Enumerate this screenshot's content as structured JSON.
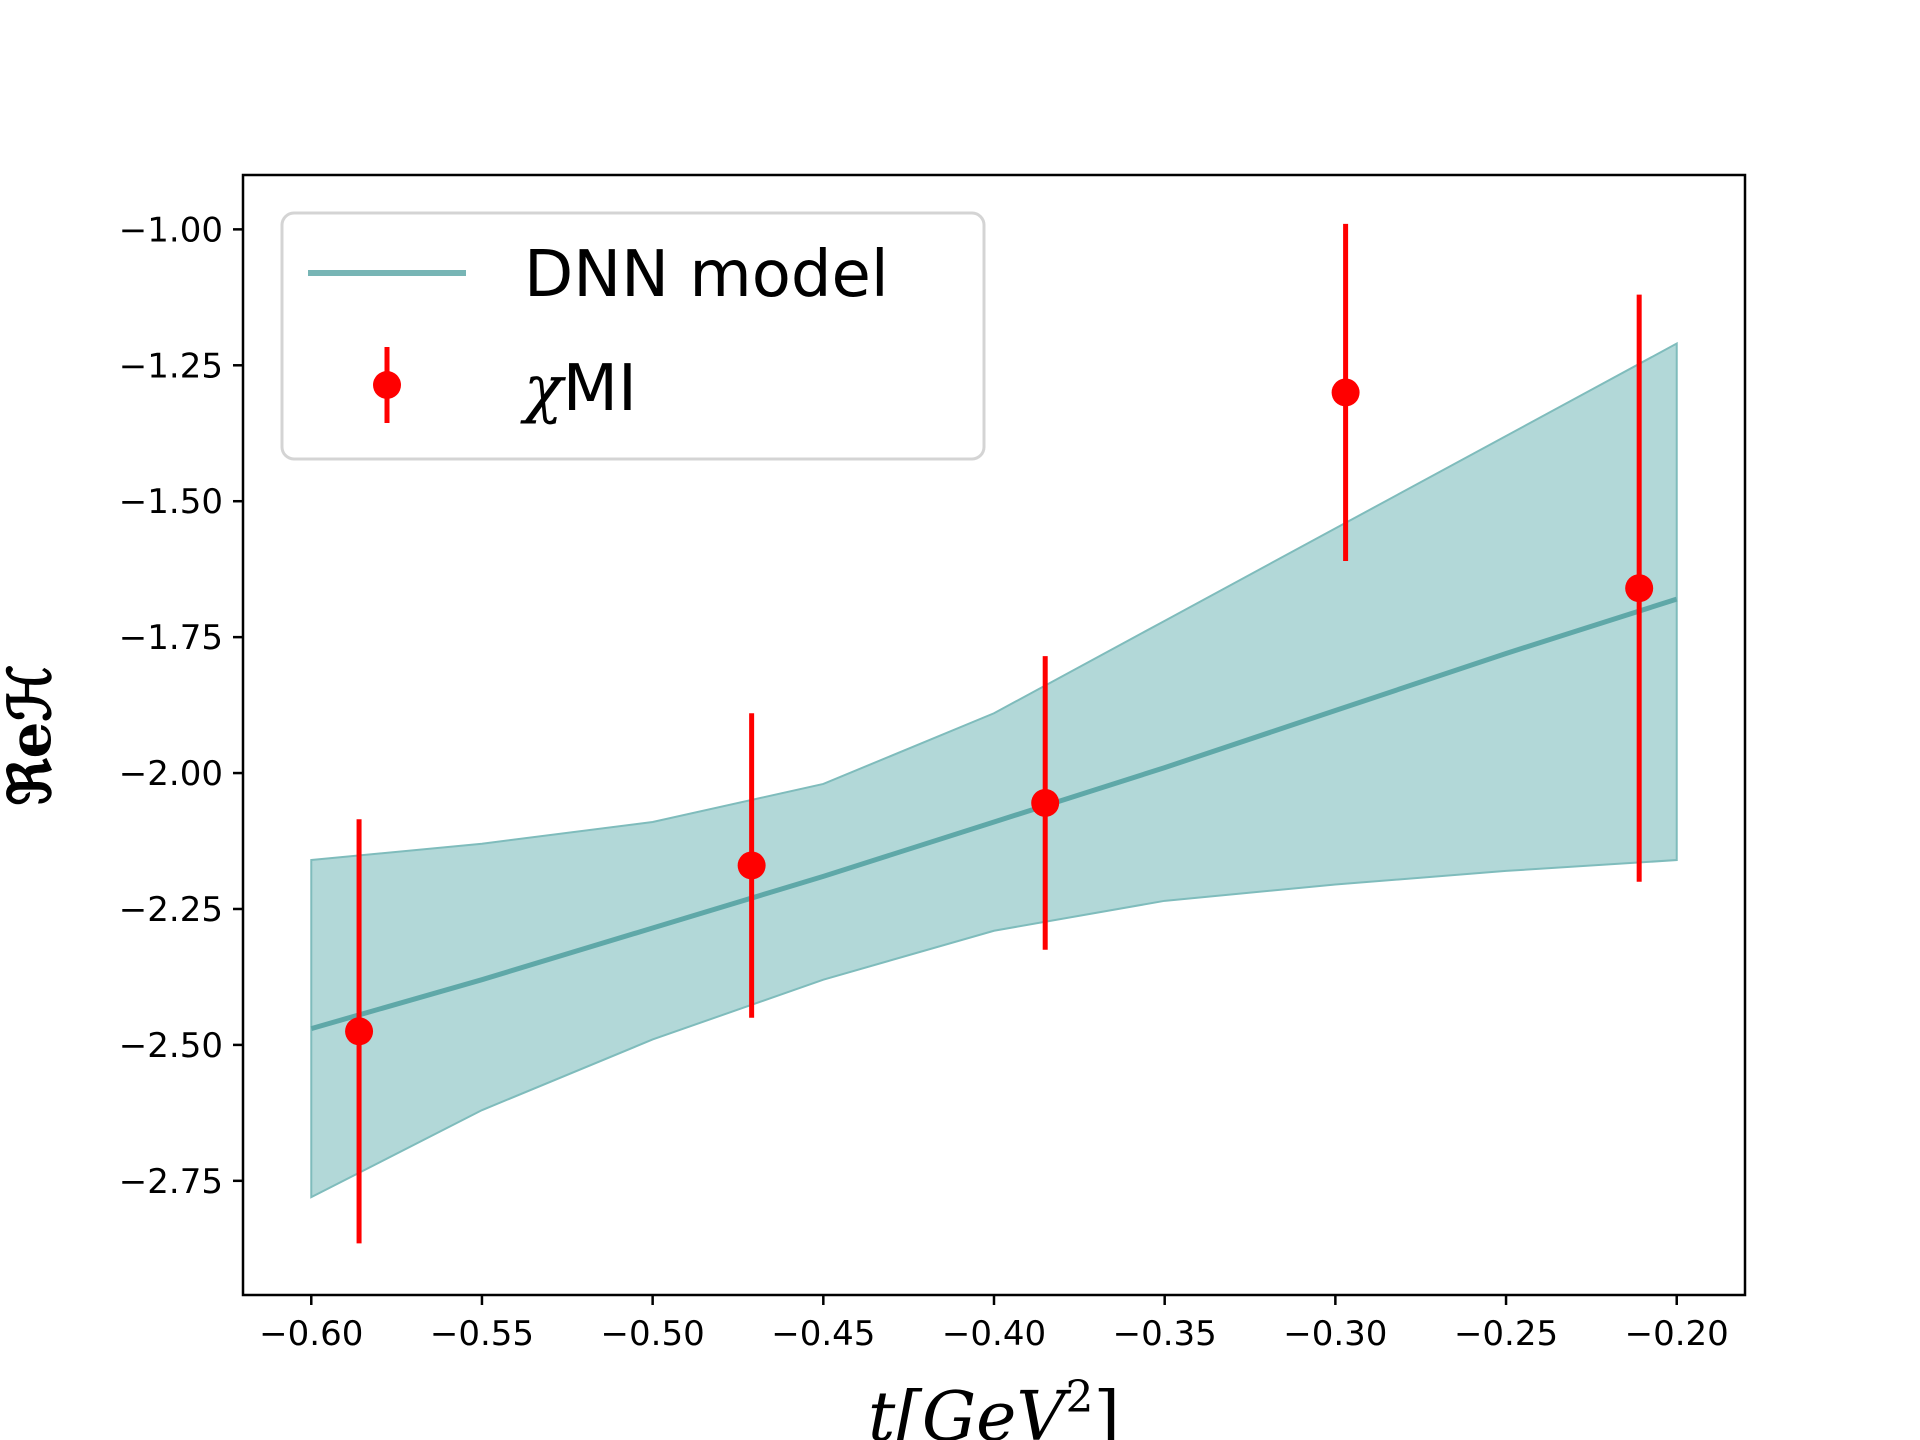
{
  "chart_data": {
    "type": "line",
    "title": "",
    "xlabel": "t[GeV^2]",
    "ylabel": "ℜeℋ",
    "xlim": [
      -0.62,
      -0.18
    ],
    "ylim": [
      -2.96,
      -0.9
    ],
    "grid": false,
    "legend_position": "top-left",
    "xticks": [
      -0.6,
      -0.55,
      -0.5,
      -0.45,
      -0.4,
      -0.35,
      -0.3,
      -0.25,
      -0.2
    ],
    "xtick_labels": [
      "−0.60",
      "−0.55",
      "−0.50",
      "−0.45",
      "−0.40",
      "−0.35",
      "−0.30",
      "−0.25",
      "−0.20"
    ],
    "yticks": [
      -1.0,
      -1.25,
      -1.5,
      -1.75,
      -2.0,
      -2.25,
      -2.5,
      -2.75
    ],
    "ytick_labels": [
      "−1.00",
      "−1.25",
      "−1.50",
      "−1.75",
      "−2.00",
      "−2.25",
      "−2.50",
      "−2.75"
    ],
    "series": [
      {
        "name": "DNN model",
        "kind": "line_with_band",
        "color": "#5fa8a8",
        "band_color": "#b2d8d8",
        "x": [
          -0.6,
          -0.55,
          -0.5,
          -0.45,
          -0.4,
          -0.35,
          -0.3,
          -0.25,
          -0.2
        ],
        "y": [
          -2.47,
          -2.38,
          -2.285,
          -2.19,
          -2.09,
          -1.99,
          -1.885,
          -1.78,
          -1.68
        ],
        "band_upper": [
          -2.16,
          -2.13,
          -2.09,
          -2.02,
          -1.89,
          -1.72,
          -1.55,
          -1.38,
          -1.21
        ],
        "band_lower": [
          -2.78,
          -2.62,
          -2.49,
          -2.38,
          -2.29,
          -2.235,
          -2.205,
          -2.18,
          -2.16
        ]
      },
      {
        "name": "χMI",
        "kind": "errorbar",
        "color": "#ff0000",
        "x": [
          -0.586,
          -0.471,
          -0.385,
          -0.297,
          -0.211
        ],
        "y": [
          -2.475,
          -2.17,
          -2.055,
          -1.3,
          -1.66
        ],
        "yerr": [
          0.39,
          0.28,
          0.27,
          0.31,
          0.54
        ]
      }
    ]
  },
  "legend": {
    "line_label": "DNN model",
    "errorbar_label_greek": "χ",
    "errorbar_label_rest": "MI"
  },
  "axes_text": {
    "xlabel_main": "t[GeV",
    "xlabel_sup": "2",
    "xlabel_end": "]",
    "ylabel": "ℜeℋ"
  }
}
